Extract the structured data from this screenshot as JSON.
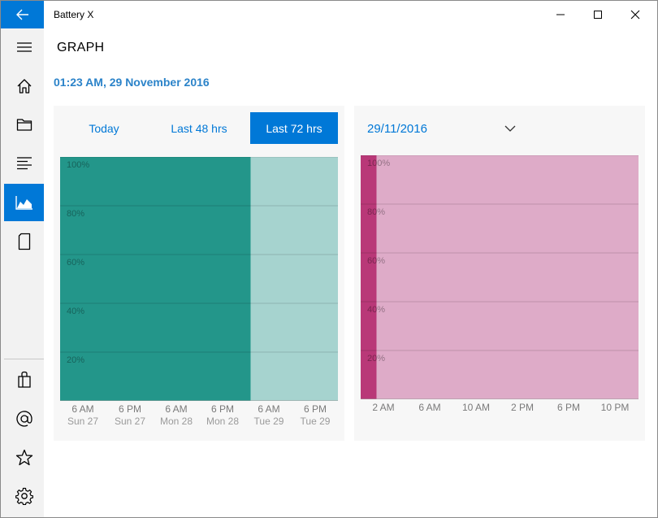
{
  "app": {
    "title": "Battery X"
  },
  "page": {
    "title": "GRAPH",
    "datetime": "01:23 AM, 29 November 2016"
  },
  "icons": {
    "back": "back-arrow-icon",
    "minimize": "minimize-icon",
    "maximize": "maximize-icon",
    "close": "close-icon",
    "menu": "hamburger-icon",
    "home": "home-icon",
    "folder": "folder-icon",
    "list": "list-icon",
    "graph": "area-chart-icon",
    "tablet": "tablet-icon",
    "store": "shopping-bag-icon",
    "contact": "at-icon",
    "rate": "star-icon",
    "settings": "gear-icon"
  },
  "colors": {
    "accent": "#0078d7",
    "chart1_dark": "#23968a",
    "chart1_light": "#a6d3cf",
    "chart2_dark": "#b93878",
    "chart2_light": "#deabc8"
  },
  "tabs": [
    {
      "label": "Today",
      "active": false
    },
    {
      "label": "Last 48 hrs",
      "active": false
    },
    {
      "label": "Last 72 hrs",
      "active": true
    }
  ],
  "date_select": {
    "value": "29/11/2016"
  },
  "chart_data": [
    {
      "type": "area",
      "y_ticks": [
        "20%",
        "40%",
        "60%",
        "80%",
        "100%"
      ],
      "ylim": [
        0,
        100
      ],
      "x_ticks": [
        {
          "time": "6 AM",
          "day": "Sun 27"
        },
        {
          "time": "6 PM",
          "day": "Sun 27"
        },
        {
          "time": "6 AM",
          "day": "Mon 28"
        },
        {
          "time": "6 PM",
          "day": "Mon 28"
        },
        {
          "time": "6 AM",
          "day": "Tue 29"
        },
        {
          "time": "6 PM",
          "day": "Tue 29"
        }
      ],
      "x_hours": [
        0,
        72
      ],
      "segments": [
        {
          "from_hour": 0,
          "to_hour": 49.4,
          "value": 100,
          "shade": "dark"
        },
        {
          "from_hour": 49.4,
          "to_hour": 72,
          "value": 100,
          "shade": "light"
        }
      ]
    },
    {
      "type": "area",
      "y_ticks": [
        "20%",
        "40%",
        "60%",
        "80%",
        "100%"
      ],
      "ylim": [
        0,
        100
      ],
      "x_ticks": [
        "2 AM",
        "6 AM",
        "10 AM",
        "2 PM",
        "6 PM",
        "10 PM"
      ],
      "x_hours": [
        0,
        24
      ],
      "segments": [
        {
          "from_hour": 0,
          "to_hour": 1.38,
          "value": 100,
          "shade": "dark"
        },
        {
          "from_hour": 1.38,
          "to_hour": 24,
          "value": 100,
          "shade": "light"
        }
      ]
    }
  ]
}
